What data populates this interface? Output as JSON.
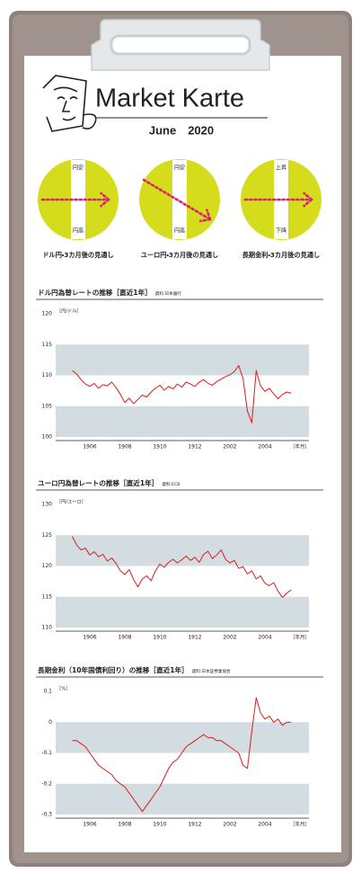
{
  "header": {
    "title": "Market Karte",
    "date": "June　2020"
  },
  "outlooks": [
    {
      "top": "円安",
      "bottom": "円高",
      "caption": "ドル円・3カ月後の見通し",
      "direction": "flat"
    },
    {
      "top": "円安",
      "bottom": "円高",
      "caption": "ユーロ円・3カ月後の見通し",
      "direction": "down"
    },
    {
      "top": "上昇",
      "bottom": "下降",
      "caption": "長期金利・3カ月後の見通し",
      "direction": "flat"
    }
  ],
  "chart_data": [
    {
      "type": "line",
      "title": "ドル円為替レートの推移［直近1年］",
      "source": "資料:日本銀行",
      "y_label": "［円/ドル］",
      "x_label": "［年月］",
      "color": "#e01b1b",
      "grid": true,
      "categories": [
        null,
        null,
        null,
        null,
        "1906",
        null,
        null,
        null,
        null,
        null,
        null,
        null,
        "1908",
        null,
        null,
        null,
        null,
        null,
        null,
        null,
        "1910",
        null,
        null,
        null,
        null,
        null,
        null,
        null,
        "1912",
        null,
        null,
        null,
        null,
        null,
        null,
        null,
        "2002",
        null,
        null,
        null,
        null,
        null,
        null,
        null,
        "2004",
        null,
        null,
        null,
        null,
        null,
        null
      ],
      "values": [
        110.8,
        110.2,
        109.3,
        108.6,
        108.2,
        108.7,
        107.9,
        108.5,
        108.3,
        108.9,
        108.0,
        106.9,
        105.6,
        106.3,
        105.4,
        106.1,
        106.8,
        106.5,
        107.3,
        107.9,
        108.4,
        107.6,
        108.2,
        107.8,
        108.6,
        108.1,
        108.9,
        108.6,
        108.2,
        108.9,
        109.3,
        108.7,
        108.4,
        109.0,
        109.4,
        109.8,
        110.1,
        110.6,
        111.6,
        109.5,
        104.2,
        102.3,
        110.8,
        108.3,
        107.4,
        107.9,
        107.0,
        106.2,
        106.9,
        107.3,
        107.1
      ],
      "ylim": [
        100,
        120
      ],
      "yticks": [
        100,
        105,
        110,
        115,
        120
      ]
    },
    {
      "type": "line",
      "title": "ユーロ円為替レートの推移［直近1年］",
      "source": "資料:ECB",
      "y_label": "［円/ユーロ］",
      "x_label": "［年月］",
      "color": "#e01b1b",
      "grid": true,
      "categories": [
        null,
        null,
        null,
        null,
        "1906",
        null,
        null,
        null,
        null,
        null,
        null,
        null,
        "1908",
        null,
        null,
        null,
        null,
        null,
        null,
        null,
        "1910",
        null,
        null,
        null,
        null,
        null,
        null,
        null,
        "1912",
        null,
        null,
        null,
        null,
        null,
        null,
        null,
        "2002",
        null,
        null,
        null,
        null,
        null,
        null,
        null,
        "2004",
        null,
        null,
        null,
        null,
        null,
        null
      ],
      "values": [
        124.8,
        123.4,
        122.6,
        122.9,
        121.8,
        122.3,
        121.5,
        121.9,
        120.8,
        121.3,
        120.4,
        119.2,
        118.6,
        119.4,
        117.8,
        116.6,
        117.9,
        118.4,
        117.6,
        119.2,
        120.3,
        119.8,
        120.6,
        121.1,
        120.5,
        121.0,
        121.6,
        120.9,
        121.4,
        120.6,
        121.9,
        122.4,
        121.2,
        121.8,
        122.6,
        121.1,
        120.5,
        120.9,
        119.6,
        119.9,
        118.7,
        119.2,
        117.9,
        118.4,
        117.2,
        116.8,
        117.3,
        115.9,
        114.9,
        115.6,
        116.1
      ],
      "ylim": [
        110,
        130
      ],
      "yticks": [
        110,
        115,
        120,
        125,
        130
      ]
    },
    {
      "type": "line",
      "title": "長期金利（10年国債利回り）の推移［直近1年］",
      "source": "資料:日本証券業協会",
      "y_label": "［%］",
      "x_label": "［年月］",
      "color": "#e01b1b",
      "grid": true,
      "categories": [
        null,
        null,
        null,
        null,
        "1906",
        null,
        null,
        null,
        null,
        null,
        null,
        null,
        "1908",
        null,
        null,
        null,
        null,
        null,
        null,
        null,
        "1910",
        null,
        null,
        null,
        null,
        null,
        null,
        null,
        "1912",
        null,
        null,
        null,
        null,
        null,
        null,
        null,
        "2002",
        null,
        null,
        null,
        null,
        null,
        null,
        null,
        "2004",
        null,
        null,
        null,
        null,
        null,
        null
      ],
      "values": [
        -0.06,
        -0.06,
        -0.07,
        -0.08,
        -0.1,
        -0.12,
        -0.14,
        -0.15,
        -0.16,
        -0.17,
        -0.19,
        -0.2,
        -0.21,
        -0.23,
        -0.25,
        -0.27,
        -0.29,
        -0.27,
        -0.25,
        -0.23,
        -0.21,
        -0.18,
        -0.15,
        -0.13,
        -0.12,
        -0.1,
        -0.08,
        -0.07,
        -0.06,
        -0.05,
        -0.04,
        -0.05,
        -0.05,
        -0.06,
        -0.06,
        -0.07,
        -0.08,
        -0.09,
        -0.1,
        -0.14,
        -0.15,
        -0.03,
        0.08,
        0.03,
        0.01,
        0.02,
        0.0,
        0.01,
        -0.01,
        0.0,
        0.0
      ],
      "ylim": [
        -0.3,
        0.1
      ],
      "yticks": [
        -0.3,
        -0.2,
        -0.1,
        0,
        0.1
      ]
    }
  ]
}
